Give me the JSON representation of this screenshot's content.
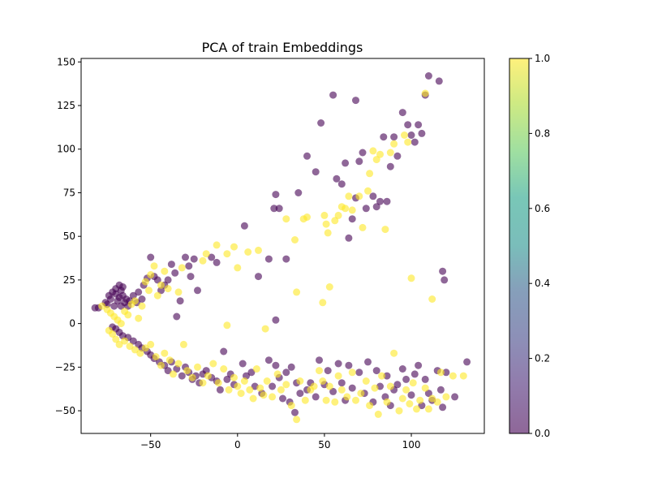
{
  "chart_data": {
    "type": "scatter",
    "title": "PCA of train Embeddings",
    "xlabel": "",
    "ylabel": "",
    "xlim": [
      -90,
      142
    ],
    "ylim": [
      -63,
      152
    ],
    "x_ticks": [
      -50,
      0,
      50,
      100
    ],
    "y_ticks": [
      -50,
      -25,
      0,
      25,
      50,
      75,
      100,
      125,
      150
    ],
    "grid": false,
    "colorbar": {
      "colormap": "viridis",
      "alpha": 0.6,
      "range": [
        0.0,
        1.0
      ],
      "ticks": [
        0.0,
        0.2,
        0.4,
        0.6,
        0.8,
        1.0
      ],
      "tick_labels": [
        "0.0",
        "0.2",
        "0.4",
        "0.6",
        "0.8",
        "1.0"
      ]
    },
    "colors": {
      "class_0": "#440154",
      "class_1": "#fde725"
    },
    "series": [
      {
        "class": 0,
        "points": [
          [
            -82,
            9
          ],
          [
            -80,
            9
          ],
          [
            -76,
            12
          ],
          [
            -74,
            16
          ],
          [
            -72,
            18
          ],
          [
            -70,
            20
          ],
          [
            -68,
            22
          ],
          [
            -67,
            19
          ],
          [
            -66,
            16
          ],
          [
            -69,
            13
          ],
          [
            -71,
            10
          ],
          [
            -73,
            14
          ],
          [
            -75,
            11
          ],
          [
            -65,
            12
          ],
          [
            -63,
            10
          ],
          [
            -64,
            14
          ],
          [
            -62,
            13
          ],
          [
            -68,
            15
          ],
          [
            -70,
            17
          ],
          [
            -66,
            21
          ],
          [
            -67,
            10
          ],
          [
            -60,
            16
          ],
          [
            -58,
            12
          ],
          [
            -57,
            18
          ],
          [
            -55,
            14
          ],
          [
            -54,
            22
          ],
          [
            -52,
            26
          ],
          [
            -50,
            38
          ],
          [
            -48,
            27
          ],
          [
            -46,
            25
          ],
          [
            -44,
            19
          ],
          [
            -42,
            22
          ],
          [
            -40,
            25
          ],
          [
            -38,
            34
          ],
          [
            -36,
            29
          ],
          [
            -35,
            4
          ],
          [
            -33,
            13
          ],
          [
            -30,
            38
          ],
          [
            -28,
            33
          ],
          [
            -27,
            27
          ],
          [
            -25,
            37
          ],
          [
            -23,
            19
          ],
          [
            -15,
            38
          ],
          [
            -12,
            35
          ],
          [
            -72,
            -2
          ],
          [
            -70,
            -3
          ],
          [
            -68,
            -5
          ],
          [
            -66,
            -7
          ],
          [
            -63,
            -8
          ],
          [
            -60,
            -10
          ],
          [
            -57,
            -12
          ],
          [
            -55,
            -14
          ],
          [
            -52,
            -16
          ],
          [
            -50,
            -18
          ],
          [
            -48,
            -20
          ],
          [
            -45,
            -22
          ],
          [
            -42,
            -24
          ],
          [
            -40,
            -27
          ],
          [
            -38,
            -22
          ],
          [
            -35,
            -26
          ],
          [
            -32,
            -30
          ],
          [
            -30,
            -25
          ],
          [
            -28,
            -28
          ],
          [
            -26,
            -32
          ],
          [
            -24,
            -30
          ],
          [
            -22,
            -34
          ],
          [
            -20,
            -29
          ],
          [
            -18,
            -27
          ],
          [
            -15,
            -31
          ],
          [
            -12,
            -33
          ],
          [
            -10,
            -38
          ],
          [
            -8,
            -16
          ],
          [
            -6,
            -32
          ],
          [
            -4,
            -29
          ],
          [
            -2,
            -35
          ],
          [
            3,
            -23
          ],
          [
            5,
            -30
          ],
          [
            8,
            -28
          ],
          [
            10,
            -36
          ],
          [
            14,
            -40
          ],
          [
            18,
            -21
          ],
          [
            20,
            -36
          ],
          [
            22,
            -24
          ],
          [
            24,
            -31
          ],
          [
            26,
            -43
          ],
          [
            28,
            -28
          ],
          [
            30,
            -45
          ],
          [
            31,
            -25
          ],
          [
            33,
            -51
          ],
          [
            34,
            -34
          ],
          [
            36,
            -40
          ],
          [
            40,
            -38
          ],
          [
            42,
            -34
          ],
          [
            45,
            -42
          ],
          [
            47,
            -21
          ],
          [
            50,
            -35
          ],
          [
            52,
            -27
          ],
          [
            55,
            -39
          ],
          [
            58,
            -23
          ],
          [
            60,
            -34
          ],
          [
            62,
            -44
          ],
          [
            64,
            -24
          ],
          [
            66,
            -37
          ],
          [
            70,
            -28
          ],
          [
            73,
            -40
          ],
          [
            75,
            -22
          ],
          [
            78,
            -45
          ],
          [
            80,
            -27
          ],
          [
            82,
            -36
          ],
          [
            85,
            -42
          ],
          [
            86,
            -30
          ],
          [
            88,
            -47
          ],
          [
            90,
            -38
          ],
          [
            92,
            -35
          ],
          [
            95,
            -26
          ],
          [
            97,
            -32
          ],
          [
            100,
            -41
          ],
          [
            102,
            -29
          ],
          [
            104,
            -24
          ],
          [
            106,
            -47
          ],
          [
            108,
            -32
          ],
          [
            110,
            -40
          ],
          [
            112,
            -44
          ],
          [
            115,
            -27
          ],
          [
            117,
            -38
          ],
          [
            118,
            -48
          ],
          [
            120,
            -28
          ],
          [
            125,
            -42
          ],
          [
            132,
            -22
          ],
          [
            4,
            56
          ],
          [
            12,
            27
          ],
          [
            18,
            37
          ],
          [
            21,
            66
          ],
          [
            22,
            74
          ],
          [
            24,
            66
          ],
          [
            28,
            37
          ],
          [
            35,
            75
          ],
          [
            40,
            96
          ],
          [
            45,
            87
          ],
          [
            48,
            115
          ],
          [
            55,
            131
          ],
          [
            57,
            83
          ],
          [
            60,
            80
          ],
          [
            62,
            92
          ],
          [
            64,
            49
          ],
          [
            66,
            60
          ],
          [
            68,
            72
          ],
          [
            70,
            93
          ],
          [
            72,
            98
          ],
          [
            74,
            66
          ],
          [
            78,
            73
          ],
          [
            80,
            67
          ],
          [
            82,
            70
          ],
          [
            84,
            107
          ],
          [
            86,
            70
          ],
          [
            88,
            90
          ],
          [
            90,
            107
          ],
          [
            92,
            96
          ],
          [
            95,
            121
          ],
          [
            98,
            114
          ],
          [
            100,
            108
          ],
          [
            102,
            104
          ],
          [
            104,
            114
          ],
          [
            106,
            109
          ],
          [
            108,
            131
          ],
          [
            110,
            142
          ],
          [
            116,
            139
          ],
          [
            118,
            30
          ],
          [
            119,
            25
          ],
          [
            68,
            128
          ],
          [
            22,
            2
          ]
        ]
      },
      {
        "class": 1,
        "points": [
          [
            -78,
            10
          ],
          [
            -75,
            8
          ],
          [
            -73,
            6
          ],
          [
            -71,
            4
          ],
          [
            -69,
            2
          ],
          [
            -67,
            0
          ],
          [
            -65,
            7
          ],
          [
            -63,
            5
          ],
          [
            -61,
            11
          ],
          [
            -59,
            13
          ],
          [
            -57,
            3
          ],
          [
            -55,
            10
          ],
          [
            -53,
            24
          ],
          [
            -51,
            19
          ],
          [
            -50,
            28
          ],
          [
            -48,
            33
          ],
          [
            -46,
            16
          ],
          [
            -44,
            22
          ],
          [
            -42,
            30
          ],
          [
            -40,
            20
          ],
          [
            -34,
            18
          ],
          [
            -32,
            32
          ],
          [
            -20,
            36
          ],
          [
            -18,
            40
          ],
          [
            -12,
            45
          ],
          [
            -6,
            40
          ],
          [
            -2,
            44
          ],
          [
            0,
            32
          ],
          [
            6,
            41
          ],
          [
            12,
            42
          ],
          [
            16,
            -3
          ],
          [
            -6,
            -1
          ],
          [
            -74,
            -4
          ],
          [
            -72,
            -6
          ],
          [
            -70,
            -9
          ],
          [
            -68,
            -12
          ],
          [
            -65,
            -10
          ],
          [
            -62,
            -13
          ],
          [
            -59,
            -15
          ],
          [
            -56,
            -17
          ],
          [
            -53,
            -14
          ],
          [
            -50,
            -12
          ],
          [
            -47,
            -19
          ],
          [
            -44,
            -24
          ],
          [
            -42,
            -17
          ],
          [
            -39,
            -21
          ],
          [
            -37,
            -29
          ],
          [
            -34,
            -23
          ],
          [
            -31,
            -12
          ],
          [
            -29,
            -27
          ],
          [
            -26,
            -31
          ],
          [
            -23,
            -25
          ],
          [
            -20,
            -34
          ],
          [
            -17,
            -30
          ],
          [
            -14,
            -23
          ],
          [
            -11,
            -34
          ],
          [
            -8,
            -26
          ],
          [
            -5,
            -38
          ],
          [
            -2,
            -31
          ],
          [
            0,
            -36
          ],
          [
            2,
            -40
          ],
          [
            4,
            -33
          ],
          [
            7,
            -38
          ],
          [
            9,
            -43
          ],
          [
            11,
            -26
          ],
          [
            13,
            -37
          ],
          [
            15,
            -41
          ],
          [
            17,
            -33
          ],
          [
            20,
            -42
          ],
          [
            23,
            -29
          ],
          [
            25,
            -38
          ],
          [
            28,
            -35
          ],
          [
            31,
            -47
          ],
          [
            34,
            -55
          ],
          [
            36,
            -33
          ],
          [
            39,
            -44
          ],
          [
            42,
            -38
          ],
          [
            44,
            -36
          ],
          [
            47,
            -27
          ],
          [
            49,
            -33
          ],
          [
            51,
            -44
          ],
          [
            53,
            -36
          ],
          [
            56,
            -45
          ],
          [
            58,
            -30
          ],
          [
            60,
            -38
          ],
          [
            63,
            -42
          ],
          [
            66,
            -28
          ],
          [
            68,
            -44
          ],
          [
            71,
            -40
          ],
          [
            74,
            -33
          ],
          [
            76,
            -47
          ],
          [
            79,
            -37
          ],
          [
            81,
            -52
          ],
          [
            83,
            -30
          ],
          [
            86,
            -45
          ],
          [
            88,
            -36
          ],
          [
            90,
            -17
          ],
          [
            93,
            -50
          ],
          [
            95,
            -43
          ],
          [
            97,
            -38
          ],
          [
            99,
            -46
          ],
          [
            101,
            -34
          ],
          [
            103,
            -49
          ],
          [
            105,
            -44
          ],
          [
            108,
            -37
          ],
          [
            110,
            -49
          ],
          [
            112,
            -43
          ],
          [
            115,
            -45
          ],
          [
            117,
            -28
          ],
          [
            120,
            -42
          ],
          [
            124,
            -30
          ],
          [
            130,
            -30
          ],
          [
            28,
            60
          ],
          [
            33,
            48
          ],
          [
            34,
            18
          ],
          [
            38,
            60
          ],
          [
            40,
            61
          ],
          [
            49,
            12
          ],
          [
            50,
            62
          ],
          [
            51,
            57
          ],
          [
            52,
            52
          ],
          [
            53,
            21
          ],
          [
            56,
            59
          ],
          [
            58,
            62
          ],
          [
            60,
            67
          ],
          [
            62,
            66
          ],
          [
            64,
            73
          ],
          [
            66,
            65
          ],
          [
            70,
            73
          ],
          [
            72,
            55
          ],
          [
            75,
            76
          ],
          [
            76,
            86
          ],
          [
            78,
            99
          ],
          [
            80,
            94
          ],
          [
            82,
            97
          ],
          [
            85,
            54
          ],
          [
            88,
            98
          ],
          [
            90,
            103
          ],
          [
            96,
            108
          ],
          [
            98,
            104
          ],
          [
            100,
            26
          ],
          [
            108,
            132
          ],
          [
            112,
            14
          ]
        ]
      }
    ]
  }
}
